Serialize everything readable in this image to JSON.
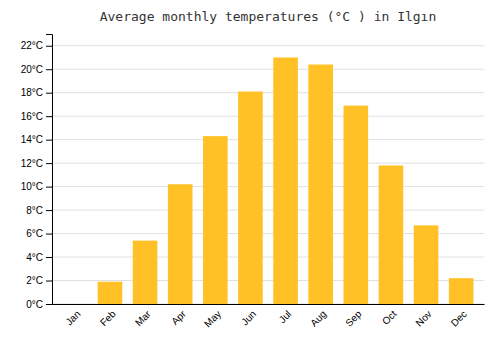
{
  "chart_data": {
    "type": "bar",
    "title": "Average monthly temperatures (°C ) in Ilgın",
    "categories": [
      "Jan",
      "Feb",
      "Mar",
      "Apr",
      "May",
      "Jun",
      "Jul",
      "Aug",
      "Sep",
      "Oct",
      "Nov",
      "Dec"
    ],
    "values": [
      0.0,
      1.9,
      5.4,
      10.2,
      14.3,
      18.1,
      21.0,
      20.4,
      16.9,
      11.8,
      6.7,
      2.2
    ],
    "color": "#FFC125",
    "ylim": [
      0,
      23
    ],
    "yticks": [
      {
        "value": 0,
        "label": "0°C"
      },
      {
        "value": 2,
        "label": "2°C"
      },
      {
        "value": 4,
        "label": "4°C"
      },
      {
        "value": 6,
        "label": "6°C"
      },
      {
        "value": 8,
        "label": "8°C"
      },
      {
        "value": 10,
        "label": "10°C"
      },
      {
        "value": 12,
        "label": "12°C"
      },
      {
        "value": 14,
        "label": "14°C"
      },
      {
        "value": 16,
        "label": "16°C"
      },
      {
        "value": 18,
        "label": "18°C"
      },
      {
        "value": 20,
        "label": "20°C"
      },
      {
        "value": 22,
        "label": "22°C"
      }
    ],
    "grid": true
  }
}
